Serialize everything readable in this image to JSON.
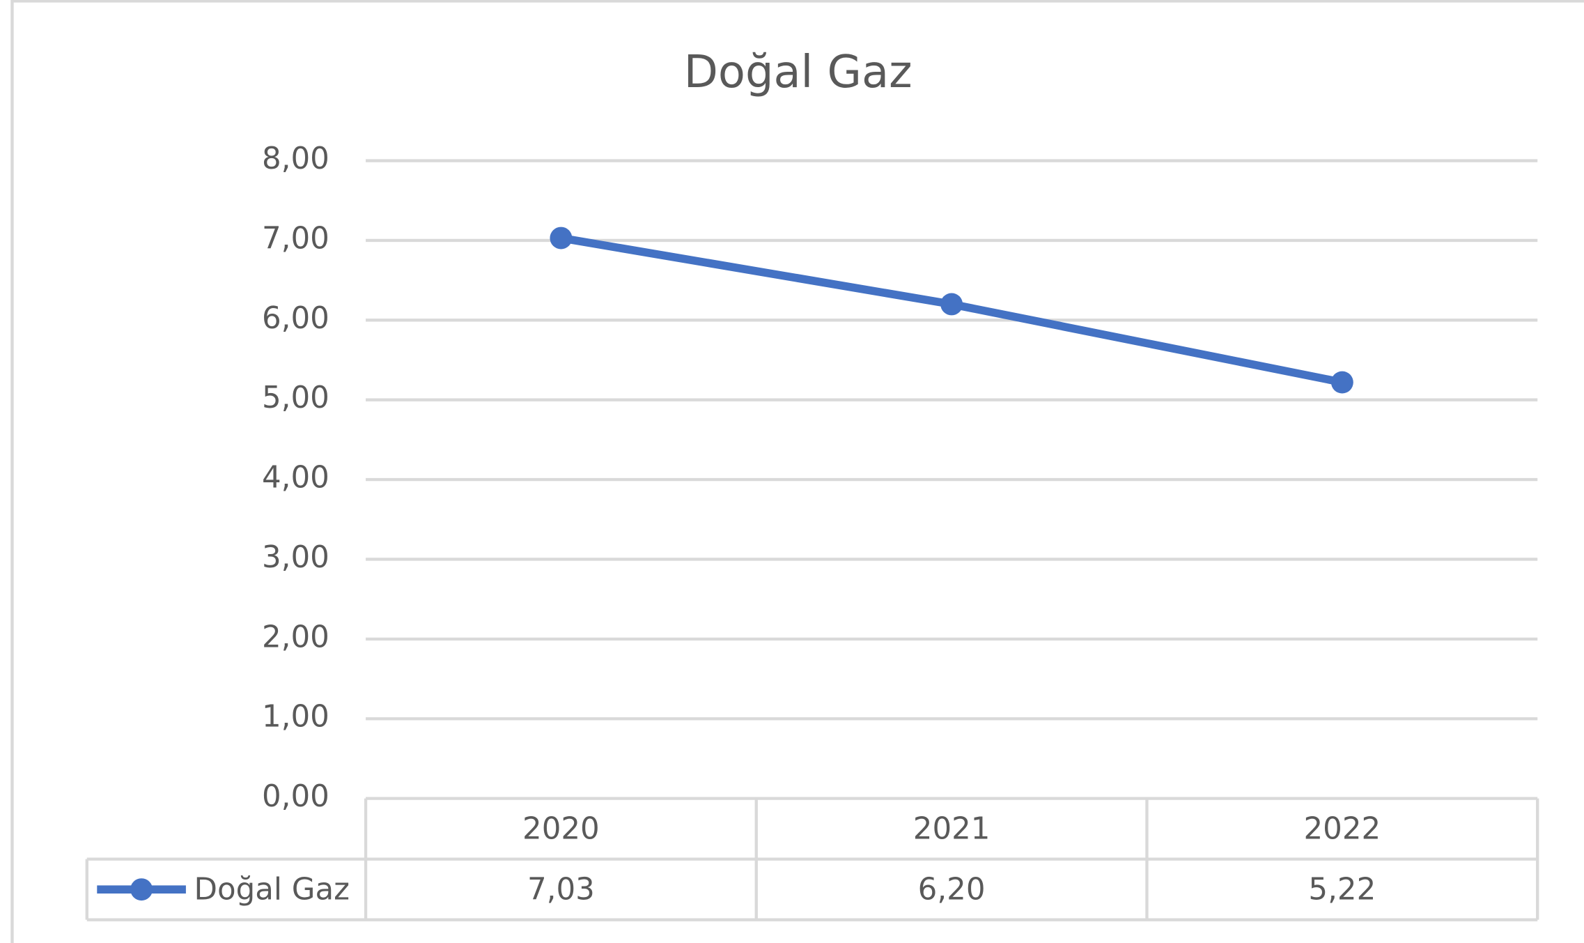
{
  "chart_data": {
    "type": "line",
    "title": "Doğal Gaz",
    "categories": [
      "2020",
      "2021",
      "2022"
    ],
    "series": [
      {
        "name": "Doğal Gaz",
        "color": "#4472c4",
        "values": [
          7.03,
          6.2,
          5.22
        ],
        "value_labels": [
          "7,03",
          "6,20",
          "5,22"
        ]
      }
    ],
    "ylim": [
      0,
      8
    ],
    "yticks": [
      {
        "value": 0,
        "label": "0,00"
      },
      {
        "value": 1,
        "label": "1,00"
      },
      {
        "value": 2,
        "label": "2,00"
      },
      {
        "value": 3,
        "label": "3,00"
      },
      {
        "value": 4,
        "label": "4,00"
      },
      {
        "value": 5,
        "label": "5,00"
      },
      {
        "value": 6,
        "label": "6,00"
      },
      {
        "value": 7,
        "label": "7,00"
      },
      {
        "value": 8,
        "label": "8,00"
      }
    ],
    "grid": true
  }
}
